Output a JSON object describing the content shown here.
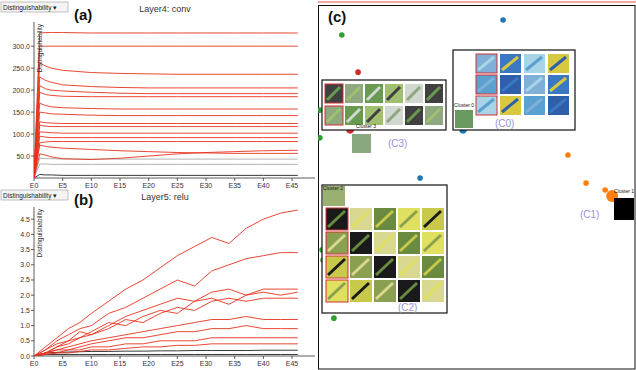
{
  "chart_data": [
    {
      "type": "line",
      "panel_label": "(a)",
      "selector": "Distinguishability ▾",
      "title": "Layer4: conv",
      "y_label": "Distinguishability",
      "x": [
        0,
        1,
        2,
        3,
        5,
        10,
        15,
        20,
        25,
        30,
        35,
        40,
        45,
        46
      ],
      "xlim": [
        0,
        49
      ],
      "ylim": [
        0,
        355
      ],
      "xticks": [
        {
          "value": 0,
          "label": "E0"
        },
        {
          "value": 5,
          "label": "E5"
        },
        {
          "value": 10,
          "label": "E10"
        },
        {
          "value": 15,
          "label": "E15"
        },
        {
          "value": 20,
          "label": "E20"
        },
        {
          "value": 25,
          "label": "E25"
        },
        {
          "value": 30,
          "label": "E30"
        },
        {
          "value": 35,
          "label": "E35"
        },
        {
          "value": 40,
          "label": "E40"
        },
        {
          "value": 45,
          "label": "E45"
        }
      ],
      "yticks": [
        {
          "value": 50,
          "label": "50.0"
        },
        {
          "value": 100,
          "label": "100.0"
        },
        {
          "value": 150,
          "label": "150.0"
        },
        {
          "value": 200,
          "label": "200.0"
        },
        {
          "value": 250,
          "label": "250.0"
        },
        {
          "value": 300,
          "label": "300.0"
        }
      ],
      "series": [
        {
          "color": "#aaaaaa",
          "values": [
            0,
            45,
            44,
            44,
            43,
            43,
            43,
            43,
            43,
            43,
            43,
            43,
            43,
            43
          ]
        },
        {
          "color": "#aaaaaa",
          "values": [
            0,
            32,
            32,
            31,
            31,
            31,
            31,
            31,
            31,
            31,
            31,
            31,
            31,
            31
          ]
        },
        {
          "color": "#222222",
          "values": [
            0,
            8,
            7,
            7,
            6,
            6,
            6,
            6,
            6,
            6,
            6,
            6,
            6,
            6
          ]
        },
        {
          "color": "#e8321e",
          "values": [
            0,
            330,
            331,
            331,
            331,
            330,
            330,
            330,
            330,
            330,
            330,
            330,
            330,
            330
          ]
        },
        {
          "color": "#e8321e",
          "values": [
            0,
            300,
            300,
            300,
            300,
            300,
            300,
            300,
            300,
            300,
            300,
            300,
            300,
            300
          ]
        },
        {
          "color": "#e8321e",
          "values": [
            0,
            262,
            255,
            250,
            245,
            240,
            238,
            237,
            236,
            236,
            236,
            236,
            236,
            236
          ]
        },
        {
          "color": "#e8321e",
          "values": [
            0,
            230,
            222,
            218,
            212,
            208,
            206,
            205,
            205,
            205,
            205,
            205,
            205,
            205
          ]
        },
        {
          "color": "#e8321e",
          "values": [
            0,
            210,
            203,
            200,
            198,
            195,
            193,
            192,
            192,
            192,
            192,
            192,
            192,
            192
          ]
        },
        {
          "color": "#e8321e",
          "values": [
            0,
            195,
            190,
            188,
            186,
            185,
            185,
            185,
            185,
            185,
            185,
            185,
            185,
            185
          ]
        },
        {
          "color": "#e8321e",
          "values": [
            0,
            170,
            165,
            162,
            160,
            158,
            157,
            157,
            157,
            157,
            157,
            157,
            157,
            157
          ]
        },
        {
          "color": "#e8321e",
          "values": [
            0,
            150,
            148,
            146,
            145,
            143,
            142,
            142,
            142,
            142,
            142,
            142,
            142,
            142
          ]
        },
        {
          "color": "#e8321e",
          "values": [
            0,
            128,
            126,
            125,
            124,
            124,
            124,
            124,
            124,
            124,
            124,
            124,
            124,
            124
          ]
        },
        {
          "color": "#e8321e",
          "values": [
            0,
            120,
            118,
            117,
            117,
            117,
            117,
            117,
            117,
            117,
            117,
            117,
            117,
            117
          ]
        },
        {
          "color": "#e8321e",
          "values": [
            0,
            105,
            104,
            103,
            102,
            102,
            102,
            102,
            102,
            102,
            102,
            102,
            102,
            102
          ]
        },
        {
          "color": "#e8321e",
          "values": [
            0,
            95,
            93,
            92,
            92,
            92,
            92,
            92,
            92,
            92,
            92,
            92,
            92,
            92
          ]
        },
        {
          "color": "#e8321e",
          "values": [
            0,
            80,
            82,
            83,
            83,
            83,
            83,
            83,
            83,
            83,
            83,
            83,
            83,
            83
          ]
        },
        {
          "color": "#e8321e",
          "values": [
            0,
            75,
            72,
            70,
            68,
            65,
            62,
            60,
            58,
            57,
            56,
            56,
            56,
            56
          ]
        },
        {
          "color": "#e8321e",
          "values": [
            0,
            55,
            52,
            48,
            44,
            42,
            45,
            50,
            55,
            58,
            60,
            62,
            63,
            63
          ]
        }
      ]
    },
    {
      "type": "line",
      "panel_label": "(b)",
      "selector": "Distinguishability ▾",
      "title": "Layer5: relu",
      "y_label": "Distinguishability",
      "x": [
        0,
        2,
        4,
        6,
        8,
        10,
        13,
        16,
        19,
        22,
        25,
        28,
        31,
        34,
        37,
        40,
        43,
        46
      ],
      "xlim": [
        0,
        49
      ],
      "ylim": [
        0,
        4.9
      ],
      "xticks": [
        {
          "value": 0,
          "label": "E0"
        },
        {
          "value": 5,
          "label": "E5"
        },
        {
          "value": 10,
          "label": "E10"
        },
        {
          "value": 15,
          "label": "E15"
        },
        {
          "value": 20,
          "label": "E20"
        },
        {
          "value": 25,
          "label": "E25"
        },
        {
          "value": 30,
          "label": "E30"
        },
        {
          "value": 35,
          "label": "E35"
        },
        {
          "value": 40,
          "label": "E40"
        },
        {
          "value": 45,
          "label": "E45"
        }
      ],
      "yticks": [
        {
          "value": 0,
          "label": "0.0"
        },
        {
          "value": 0.5,
          "label": "0.5"
        },
        {
          "value": 1,
          "label": "1.0"
        },
        {
          "value": 1.5,
          "label": "1.5"
        },
        {
          "value": 2,
          "label": "2.0"
        },
        {
          "value": 2.5,
          "label": "2.5"
        },
        {
          "value": 3,
          "label": "3.0"
        },
        {
          "value": 3.5,
          "label": "3.5"
        },
        {
          "value": 4,
          "label": "4.0"
        },
        {
          "value": 4.5,
          "label": "4.5"
        }
      ],
      "series": [
        {
          "color": "#222222",
          "values": [
            0,
            0.05,
            0.05,
            0.05,
            0.05,
            0.05,
            0.05,
            0.05,
            0.05,
            0.05,
            0.05,
            0.05,
            0.05,
            0.05,
            0.05,
            0.05,
            0.05,
            0.05
          ]
        },
        {
          "color": "#222222",
          "values": [
            0,
            0.1,
            0.12,
            0.13,
            0.14,
            0.15,
            0.15,
            0.16,
            0.16,
            0.17,
            0.17,
            0.18,
            0.18,
            0.18,
            0.18,
            0.19,
            0.19,
            0.19
          ]
        },
        {
          "color": "#e8321e",
          "values": [
            0,
            0.3,
            0.6,
            0.9,
            1.1,
            1.4,
            1.8,
            2.2,
            2.5,
            2.9,
            3.3,
            3.6,
            3.9,
            3.7,
            4.2,
            4.5,
            4.7,
            4.8
          ]
        },
        {
          "color": "#e8321e",
          "values": [
            0,
            0.2,
            0.5,
            0.7,
            0.9,
            1.0,
            1.4,
            1.6,
            1.9,
            2.2,
            2.5,
            2.3,
            2.8,
            3.0,
            3.2,
            3.3,
            3.4,
            3.4
          ]
        },
        {
          "color": "#e8321e",
          "values": [
            0,
            0.2,
            0.4,
            0.5,
            0.8,
            0.7,
            1.0,
            1.3,
            1.5,
            1.7,
            1.9,
            1.8,
            2.1,
            2.2,
            2.0,
            2.2,
            2.2,
            2.2
          ]
        },
        {
          "color": "#e8321e",
          "values": [
            0,
            0.1,
            0.3,
            0.5,
            0.6,
            0.8,
            1.1,
            1.0,
            1.3,
            1.5,
            1.4,
            1.8,
            1.9,
            1.7,
            2.0,
            2.1,
            2.0,
            2.1
          ]
        },
        {
          "color": "#e8321e",
          "values": [
            0,
            0.1,
            0.3,
            0.4,
            0.6,
            0.7,
            0.9,
            1.2,
            1.1,
            1.4,
            1.6,
            1.5,
            1.8,
            1.9,
            1.8,
            1.9,
            1.9,
            1.9
          ]
        },
        {
          "color": "#e8321e",
          "values": [
            0,
            0.1,
            0.2,
            0.3,
            0.4,
            0.5,
            0.6,
            0.7,
            0.8,
            0.9,
            1.0,
            1.1,
            1.2,
            1.2,
            1.3,
            1.2,
            1.2,
            1.2
          ]
        },
        {
          "color": "#e8321e",
          "values": [
            0,
            0.1,
            0.2,
            0.2,
            0.3,
            0.4,
            0.5,
            0.6,
            0.6,
            0.7,
            0.8,
            0.8,
            0.9,
            0.9,
            1.0,
            0.9,
            0.9,
            0.9
          ]
        },
        {
          "color": "#e8321e",
          "values": [
            0,
            0.1,
            0.1,
            0.2,
            0.2,
            0.3,
            0.3,
            0.4,
            0.4,
            0.5,
            0.5,
            0.5,
            0.6,
            0.6,
            0.6,
            0.6,
            0.6,
            0.6
          ]
        },
        {
          "color": "#e8321e",
          "values": [
            0,
            0.05,
            0.1,
            0.1,
            0.15,
            0.2,
            0.2,
            0.25,
            0.3,
            0.3,
            0.35,
            0.35,
            0.4,
            0.4,
            0.4,
            0.4,
            0.4,
            0.4
          ]
        }
      ]
    },
    {
      "type": "scatter",
      "panel_label": "(c)",
      "tick_labels": false,
      "xlim": [
        0,
        100
      ],
      "ylim": [
        0,
        100
      ],
      "x": [
        58.2,
        32.1,
        7.5,
        0.6,
        0.6,
        1.3,
        1.6,
        5.0,
        12.6,
        8.5,
        78.6,
        84.3,
        90.3
      ],
      "y": [
        95.9,
        52.6,
        91.8,
        71.2,
        63.6,
        32.9,
        30.1,
        14.2,
        81.6,
        49.9,
        58.9,
        51.2,
        49.3
      ],
      "colors": [
        "#1f77b4",
        "#1f77b4",
        "#2ca02c",
        "#2ca02c",
        "#2ca02c",
        "#2ca02c",
        "#2ca02c",
        "#2ca02c",
        "#d62728",
        "#d62728",
        "#ff7f0e",
        "#ff7f0e",
        "#ff7f0e"
      ],
      "clusters": [
        {
          "label": "Cluster 0",
          "tag": "(C0)",
          "x": 45.6,
          "y": 65.8,
          "color": "#1f77b4"
        },
        {
          "label": "Cluster 1",
          "tag": "(C1)",
          "x": 92.5,
          "y": 47.7,
          "color": "#ff7f0e"
        },
        {
          "label": "Cluster 2",
          "tag": "(C2)",
          "x": 2.5,
          "y": 47.7,
          "color": "#2ca02c"
        },
        {
          "label": "Cluster 3",
          "tag": "(C3)",
          "x": 10.1,
          "y": 65.8,
          "color": "#d62728"
        }
      ]
    }
  ]
}
